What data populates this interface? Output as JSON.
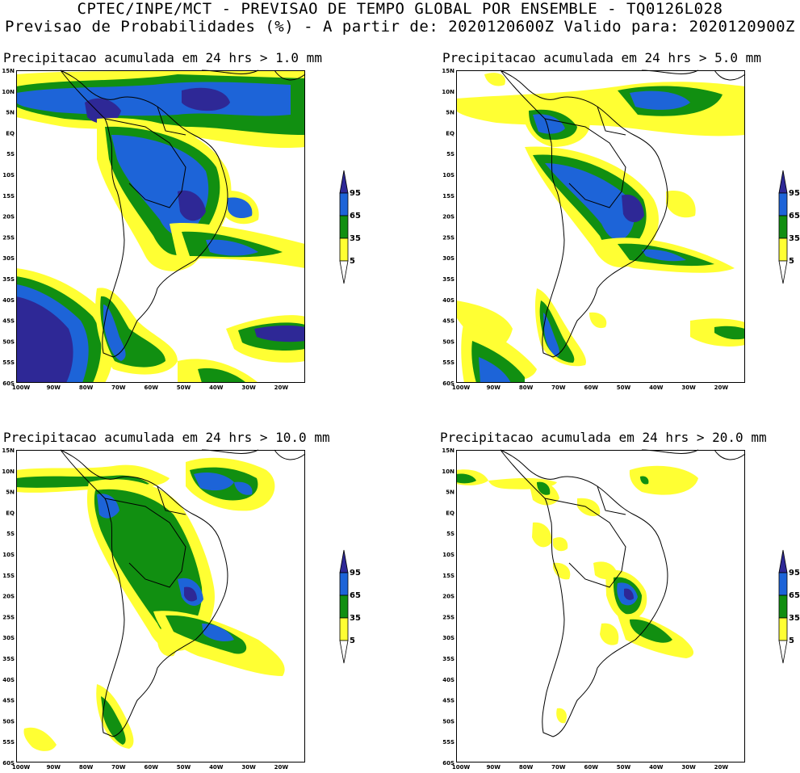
{
  "header": {
    "line1": "CPTEC/INPE/MCT - PREVISAO DE TEMPO GLOBAL POR ENSEMBLE - TQ0126L028",
    "line2": "Previsao de Probabilidades (%) -  A partir de: 2020120600Z  Valido para: 2020120900Z"
  },
  "panels": [
    {
      "title": "Precipitacao acumulada em 24 hrs > 1.0 mm"
    },
    {
      "title": "Precipitacao acumulada em 24 hrs > 5.0 mm"
    },
    {
      "title": "Precipitacao acumulada em 24 hrs > 10.0 mm"
    },
    {
      "title": "Precipitacao acumulada em 24 hrs > 20.0 mm"
    }
  ],
  "axes": {
    "lat_labels": [
      "15N",
      "10N",
      "5N",
      "EQ",
      "5S",
      "10S",
      "15S",
      "20S",
      "25S",
      "30S",
      "35S",
      "40S",
      "45S",
      "50S",
      "55S",
      "60S"
    ],
    "lon_labels": [
      "100W",
      "90W",
      "80W",
      "70W",
      "60W",
      "50W",
      "40W",
      "30W",
      "20W"
    ]
  },
  "colorbar": {
    "labels": [
      "95",
      "65",
      "35",
      "5"
    ],
    "colors": {
      "c5": "#ffff33",
      "c35": "#118f11",
      "c65": "#1d64d8",
      "c95": "#2e2896",
      "land_line": "#000000",
      "bg": "#ffffff"
    }
  }
}
